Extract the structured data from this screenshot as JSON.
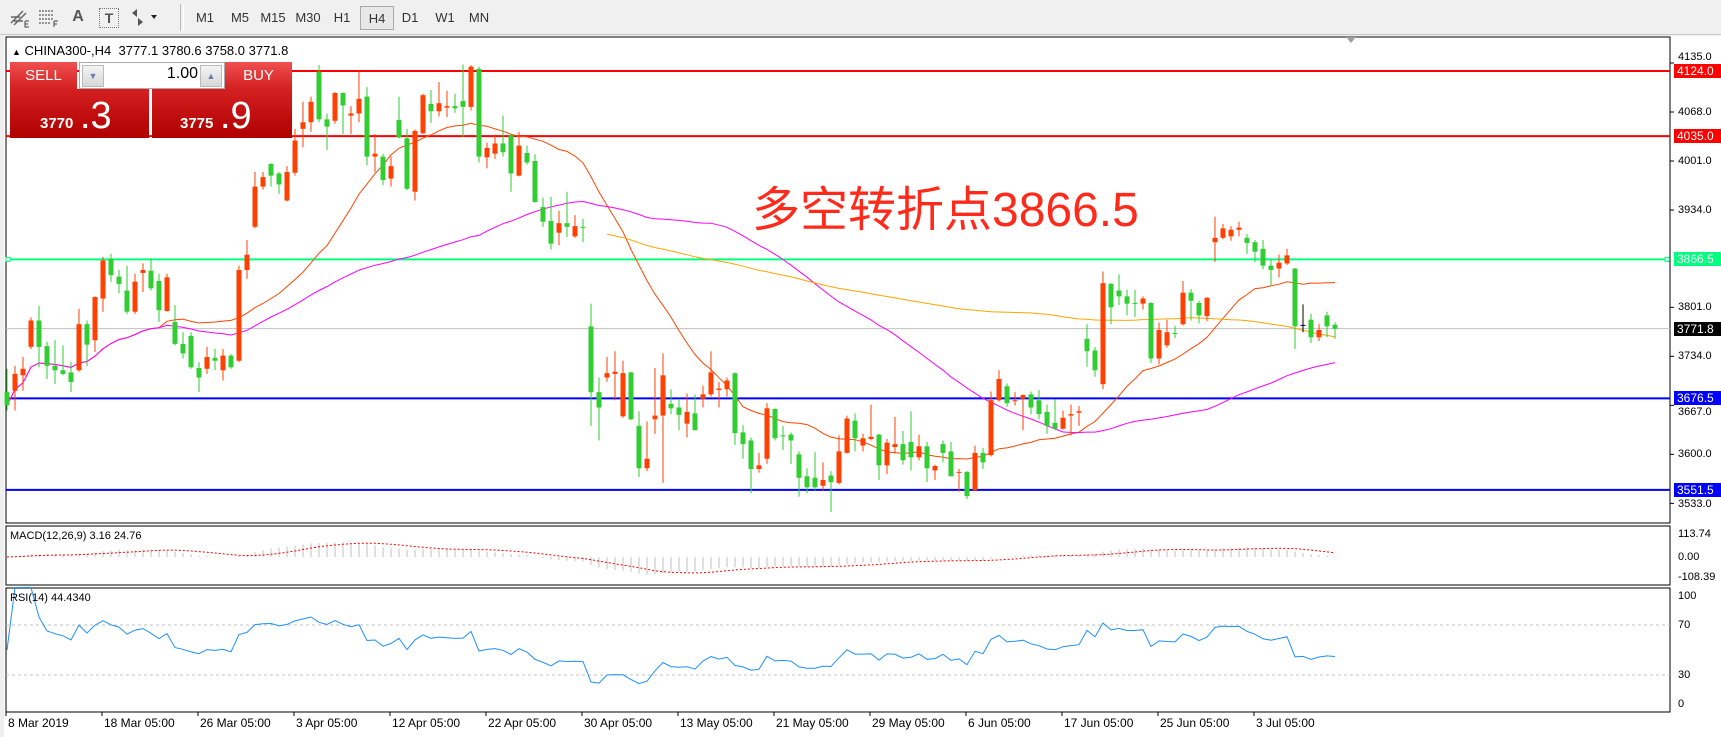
{
  "toolbar": {
    "tools": [
      {
        "icon": "fibonacci-expansion-icon"
      },
      {
        "icon": "fibonacci-fan-icon"
      },
      {
        "icon": "text-icon",
        "glyph": "A"
      },
      {
        "icon": "text-label-icon",
        "glyph": "T"
      },
      {
        "icon": "arrows-dropdown-icon"
      }
    ],
    "timeframes": [
      "M1",
      "M5",
      "M15",
      "M30",
      "H1",
      "H4",
      "D1",
      "W1",
      "MN"
    ],
    "active_timeframe": "H4"
  },
  "chart": {
    "symbol": "CHINA300-,H4",
    "ohlc_text": "3777.1 3780.6 3758.0 3771.8"
  },
  "trade_panel": {
    "sell_label": "SELL",
    "buy_label": "BUY",
    "lot": "1.00",
    "sell_price_main": "3770",
    "sell_price_frac": ".3",
    "buy_price_main": "3775",
    "buy_price_frac": ".9"
  },
  "annotation": "多空转折点3866.5",
  "chart_data": {
    "type": "candlestick",
    "y_axis_ticks": [
      "4135.0",
      "4068.0",
      "4001.0",
      "3934.0",
      "3801.0",
      "3734.0",
      "3667.0",
      "3600.0",
      "3533.0"
    ],
    "x_axis_ticks": [
      "8 Mar 2019",
      "18 Mar 05:00",
      "26 Mar 05:00",
      "3 Apr 05:00",
      "12 Apr 05:00",
      "22 Apr 05:00",
      "30 Apr 05:00",
      "13 May 05:00",
      "21 May 05:00",
      "29 May 05:00",
      "6 Jun 05:00",
      "17 Jun 05:00",
      "25 Jun 05:00",
      "3 Jul 05:00"
    ],
    "levels": [
      {
        "price": 4124.0,
        "label": "4124.0",
        "color": "#ff0000"
      },
      {
        "price": 4035.0,
        "label": "4035.0",
        "color": "#ff0000"
      },
      {
        "price": 3866.5,
        "label": "3866.5",
        "color": "#00ff7f"
      },
      {
        "price": 3676.5,
        "label": "3676.5",
        "color": "#0000ff"
      },
      {
        "price": 3551.5,
        "label": "3551.5",
        "color": "#0000ff"
      }
    ],
    "bid": {
      "price": 3771.8,
      "label": "3771.8"
    },
    "colors": {
      "up": "#ff4000",
      "down": "#32cd32",
      "ma_fast": "#ff4500",
      "ma_mid": "#ff00ff",
      "ma_slow": "#ffa500",
      "rsi": "#1e90ff",
      "macd_hist": "#c0c0c0",
      "macd_signal": "#ff0000"
    },
    "ohlc": [
      [
        3685,
        3717,
        3660,
        3667
      ],
      [
        3687,
        3721,
        3660,
        3710
      ],
      [
        3708,
        3733,
        3687,
        3717
      ],
      [
        3747,
        3787,
        3744,
        3783
      ],
      [
        3783,
        3803,
        3719,
        3747
      ],
      [
        3748,
        3754,
        3703,
        3721
      ],
      [
        3721,
        3756,
        3696,
        3715
      ],
      [
        3715,
        3749,
        3708,
        3710
      ],
      [
        3712,
        3726,
        3685,
        3699
      ],
      [
        3715,
        3799,
        3713,
        3778
      ],
      [
        3778,
        3783,
        3721,
        3750
      ],
      [
        3756,
        3816,
        3740,
        3815
      ],
      [
        3813,
        3870,
        3795,
        3865
      ],
      [
        3867,
        3874,
        3836,
        3845
      ],
      [
        3843,
        3852,
        3820,
        3833
      ],
      [
        3824,
        3858,
        3792,
        3795
      ],
      [
        3795,
        3847,
        3792,
        3836
      ],
      [
        3848,
        3861,
        3822,
        3852
      ],
      [
        3851,
        3868,
        3824,
        3827
      ],
      [
        3837,
        3847,
        3781,
        3797
      ],
      [
        3796,
        3847,
        3795,
        3842
      ],
      [
        3781,
        3804,
        3749,
        3751
      ],
      [
        3751,
        3767,
        3731,
        3738
      ],
      [
        3762,
        3767,
        3717,
        3719
      ],
      [
        3718,
        3726,
        3685,
        3705
      ],
      [
        3717,
        3747,
        3710,
        3733
      ],
      [
        3732,
        3744,
        3715,
        3728
      ],
      [
        3715,
        3744,
        3701,
        3735
      ],
      [
        3735,
        3737,
        3717,
        3719
      ],
      [
        3728,
        3858,
        3726,
        3852
      ],
      [
        3852,
        3893,
        3840,
        3873
      ],
      [
        3911,
        3986,
        3909,
        3966
      ],
      [
        3966,
        3986,
        3962,
        3979
      ],
      [
        3997,
        3998,
        3966,
        3981
      ],
      [
        3984,
        3986,
        3956,
        3969
      ],
      [
        3947,
        3994,
        3946,
        3986
      ],
      [
        3985,
        4045,
        3981,
        4029
      ],
      [
        4045,
        4082,
        4020,
        4054
      ],
      [
        4054,
        4089,
        4041,
        4082
      ],
      [
        4123,
        4132,
        4054,
        4058
      ],
      [
        4058,
        4066,
        4016,
        4048
      ],
      [
        4056,
        4095,
        4052,
        4094
      ],
      [
        4094,
        4095,
        4038,
        4077
      ],
      [
        4063,
        4076,
        4038,
        4066
      ],
      [
        4066,
        4124,
        4054,
        4086
      ],
      [
        4089,
        4102,
        3995,
        4007
      ],
      [
        4007,
        4038,
        3986,
        4011
      ],
      [
        4007,
        4011,
        3968,
        3975
      ],
      [
        3977,
        4007,
        3966,
        3994
      ],
      [
        4057,
        4089,
        4032,
        4033
      ],
      [
        4032,
        4045,
        3961,
        3963
      ],
      [
        3959,
        4044,
        3947,
        4042
      ],
      [
        4039,
        4093,
        4038,
        4091
      ],
      [
        4079,
        4098,
        4053,
        4069
      ],
      [
        4069,
        4109,
        4062,
        4080
      ],
      [
        4074,
        4097,
        4061,
        4076
      ],
      [
        4076,
        4093,
        4067,
        4073
      ],
      [
        4083,
        4133,
        4034,
        4075
      ],
      [
        4075,
        4132,
        4070,
        4130
      ],
      [
        4127,
        4130,
        3999,
        4007
      ],
      [
        4006,
        4026,
        3991,
        4019
      ],
      [
        4011,
        4037,
        4004,
        4025
      ],
      [
        4025,
        4063,
        4007,
        4013
      ],
      [
        4036,
        4038,
        3959,
        3984
      ],
      [
        3981,
        4041,
        3980,
        4022
      ],
      [
        4012,
        4022,
        3996,
        3999
      ],
      [
        4001,
        4010,
        3944,
        3945
      ],
      [
        3938,
        3951,
        3911,
        3918
      ],
      [
        3919,
        3952,
        3880,
        3888
      ],
      [
        3903,
        3933,
        3886,
        3916
      ],
      [
        3916,
        3959,
        3897,
        3911
      ],
      [
        3898,
        3927,
        3896,
        3912
      ],
      [
        3911,
        3922,
        3890,
        3910
      ],
      [
        3775,
        3806,
        3639,
        3685
      ],
      [
        3685,
        3705,
        3619,
        3664
      ],
      [
        3705,
        3733,
        3699,
        3711
      ],
      [
        3710,
        3741,
        3674,
        3713
      ],
      [
        3652,
        3728,
        3650,
        3711
      ],
      [
        3712,
        3713,
        3647,
        3648
      ],
      [
        3639,
        3659,
        3569,
        3581
      ],
      [
        3581,
        3645,
        3577,
        3594
      ],
      [
        3648,
        3718,
        3628,
        3653
      ],
      [
        3653,
        3738,
        3561,
        3708
      ],
      [
        3669,
        3689,
        3655,
        3663
      ],
      [
        3664,
        3676,
        3633,
        3654
      ],
      [
        3642,
        3683,
        3623,
        3658
      ],
      [
        3656,
        3682,
        3633,
        3633
      ],
      [
        3676,
        3694,
        3664,
        3682
      ],
      [
        3682,
        3741,
        3679,
        3712
      ],
      [
        3688,
        3699,
        3664,
        3690
      ],
      [
        3689,
        3705,
        3679,
        3701
      ],
      [
        3711,
        3712,
        3613,
        3629
      ],
      [
        3630,
        3640,
        3594,
        3614
      ],
      [
        3619,
        3623,
        3547,
        3580
      ],
      [
        3580,
        3602,
        3575,
        3585
      ],
      [
        3594,
        3670,
        3587,
        3663
      ],
      [
        3662,
        3663,
        3619,
        3622
      ],
      [
        3626,
        3639,
        3606,
        3625
      ],
      [
        3627,
        3630,
        3587,
        3619
      ],
      [
        3600,
        3604,
        3542,
        3568
      ],
      [
        3570,
        3581,
        3547,
        3555
      ],
      [
        3568,
        3603,
        3551,
        3555
      ],
      [
        3557,
        3589,
        3551,
        3565
      ],
      [
        3571,
        3577,
        3521,
        3562
      ],
      [
        3561,
        3626,
        3559,
        3604
      ],
      [
        3602,
        3653,
        3601,
        3649
      ],
      [
        3646,
        3656,
        3604,
        3622
      ],
      [
        3612,
        3628,
        3604,
        3622
      ],
      [
        3621,
        3668,
        3619,
        3624
      ],
      [
        3627,
        3628,
        3565,
        3585
      ],
      [
        3585,
        3621,
        3573,
        3616
      ],
      [
        3610,
        3651,
        3601,
        3614
      ],
      [
        3614,
        3632,
        3586,
        3592
      ],
      [
        3617,
        3659,
        3578,
        3596
      ],
      [
        3596,
        3627,
        3592,
        3611
      ],
      [
        3611,
        3617,
        3562,
        3581
      ],
      [
        3578,
        3586,
        3565,
        3584
      ],
      [
        3614,
        3619,
        3589,
        3602
      ],
      [
        3604,
        3617,
        3570,
        3570
      ],
      [
        3575,
        3580,
        3549,
        3576
      ],
      [
        3576,
        3577,
        3539,
        3543
      ],
      [
        3551,
        3612,
        3550,
        3602
      ],
      [
        3602,
        3609,
        3580,
        3589
      ],
      [
        3599,
        3686,
        3597,
        3674
      ],
      [
        3674,
        3715,
        3672,
        3703
      ],
      [
        3693,
        3697,
        3665,
        3670
      ],
      [
        3673,
        3685,
        3667,
        3674
      ],
      [
        3676,
        3682,
        3633,
        3681
      ],
      [
        3682,
        3686,
        3655,
        3664
      ],
      [
        3674,
        3688,
        3648,
        3655
      ],
      [
        3658,
        3668,
        3628,
        3639
      ],
      [
        3643,
        3675,
        3633,
        3635
      ],
      [
        3635,
        3660,
        3634,
        3650
      ],
      [
        3653,
        3668,
        3626,
        3655
      ],
      [
        3657,
        3666,
        3639,
        3659
      ],
      [
        3758,
        3778,
        3720,
        3741
      ],
      [
        3742,
        3747,
        3706,
        3715
      ],
      [
        3696,
        3850,
        3689,
        3834
      ],
      [
        3833,
        3834,
        3778,
        3801
      ],
      [
        3824,
        3846,
        3804,
        3816
      ],
      [
        3816,
        3825,
        3790,
        3806
      ],
      [
        3807,
        3825,
        3788,
        3806
      ],
      [
        3806,
        3816,
        3798,
        3813
      ],
      [
        3807,
        3808,
        3725,
        3731
      ],
      [
        3731,
        3780,
        3723,
        3770
      ],
      [
        3749,
        3784,
        3746,
        3767
      ],
      [
        3766,
        3776,
        3759,
        3765
      ],
      [
        3778,
        3837,
        3776,
        3821
      ],
      [
        3821,
        3826,
        3783,
        3810
      ],
      [
        3807,
        3810,
        3779,
        3790
      ],
      [
        3789,
        3815,
        3782,
        3814
      ],
      [
        3890,
        3925,
        3863,
        3896
      ],
      [
        3896,
        3915,
        3894,
        3909
      ],
      [
        3898,
        3912,
        3892,
        3907
      ],
      [
        3907,
        3918,
        3898,
        3910
      ],
      [
        3896,
        3901,
        3874,
        3889
      ],
      [
        3890,
        3893,
        3863,
        3877
      ],
      [
        3881,
        3893,
        3853,
        3858
      ],
      [
        3858,
        3867,
        3830,
        3852
      ],
      [
        3854,
        3873,
        3842,
        3862
      ],
      [
        3861,
        3881,
        3859,
        3872
      ],
      [
        3854,
        3855,
        3744,
        3775
      ],
      [
        3777,
        3805,
        3767,
        3777
      ],
      [
        3784,
        3792,
        3752,
        3760
      ],
      [
        3760,
        3778,
        3755,
        3770
      ],
      [
        3790,
        3795,
        3760,
        3775
      ],
      [
        3777.1,
        3780.6,
        3758.0,
        3771.8
      ]
    ],
    "macd": {
      "label": "MACD(12,26,9) 3.16 24.76",
      "axis_ticks": [
        "113.74",
        "0.00",
        "-108.39"
      ]
    },
    "rsi": {
      "label": "RSI(14) 44.4340",
      "axis_ticks": [
        "100",
        "70",
        "30",
        "0"
      ],
      "levels": [
        70,
        30
      ]
    }
  }
}
